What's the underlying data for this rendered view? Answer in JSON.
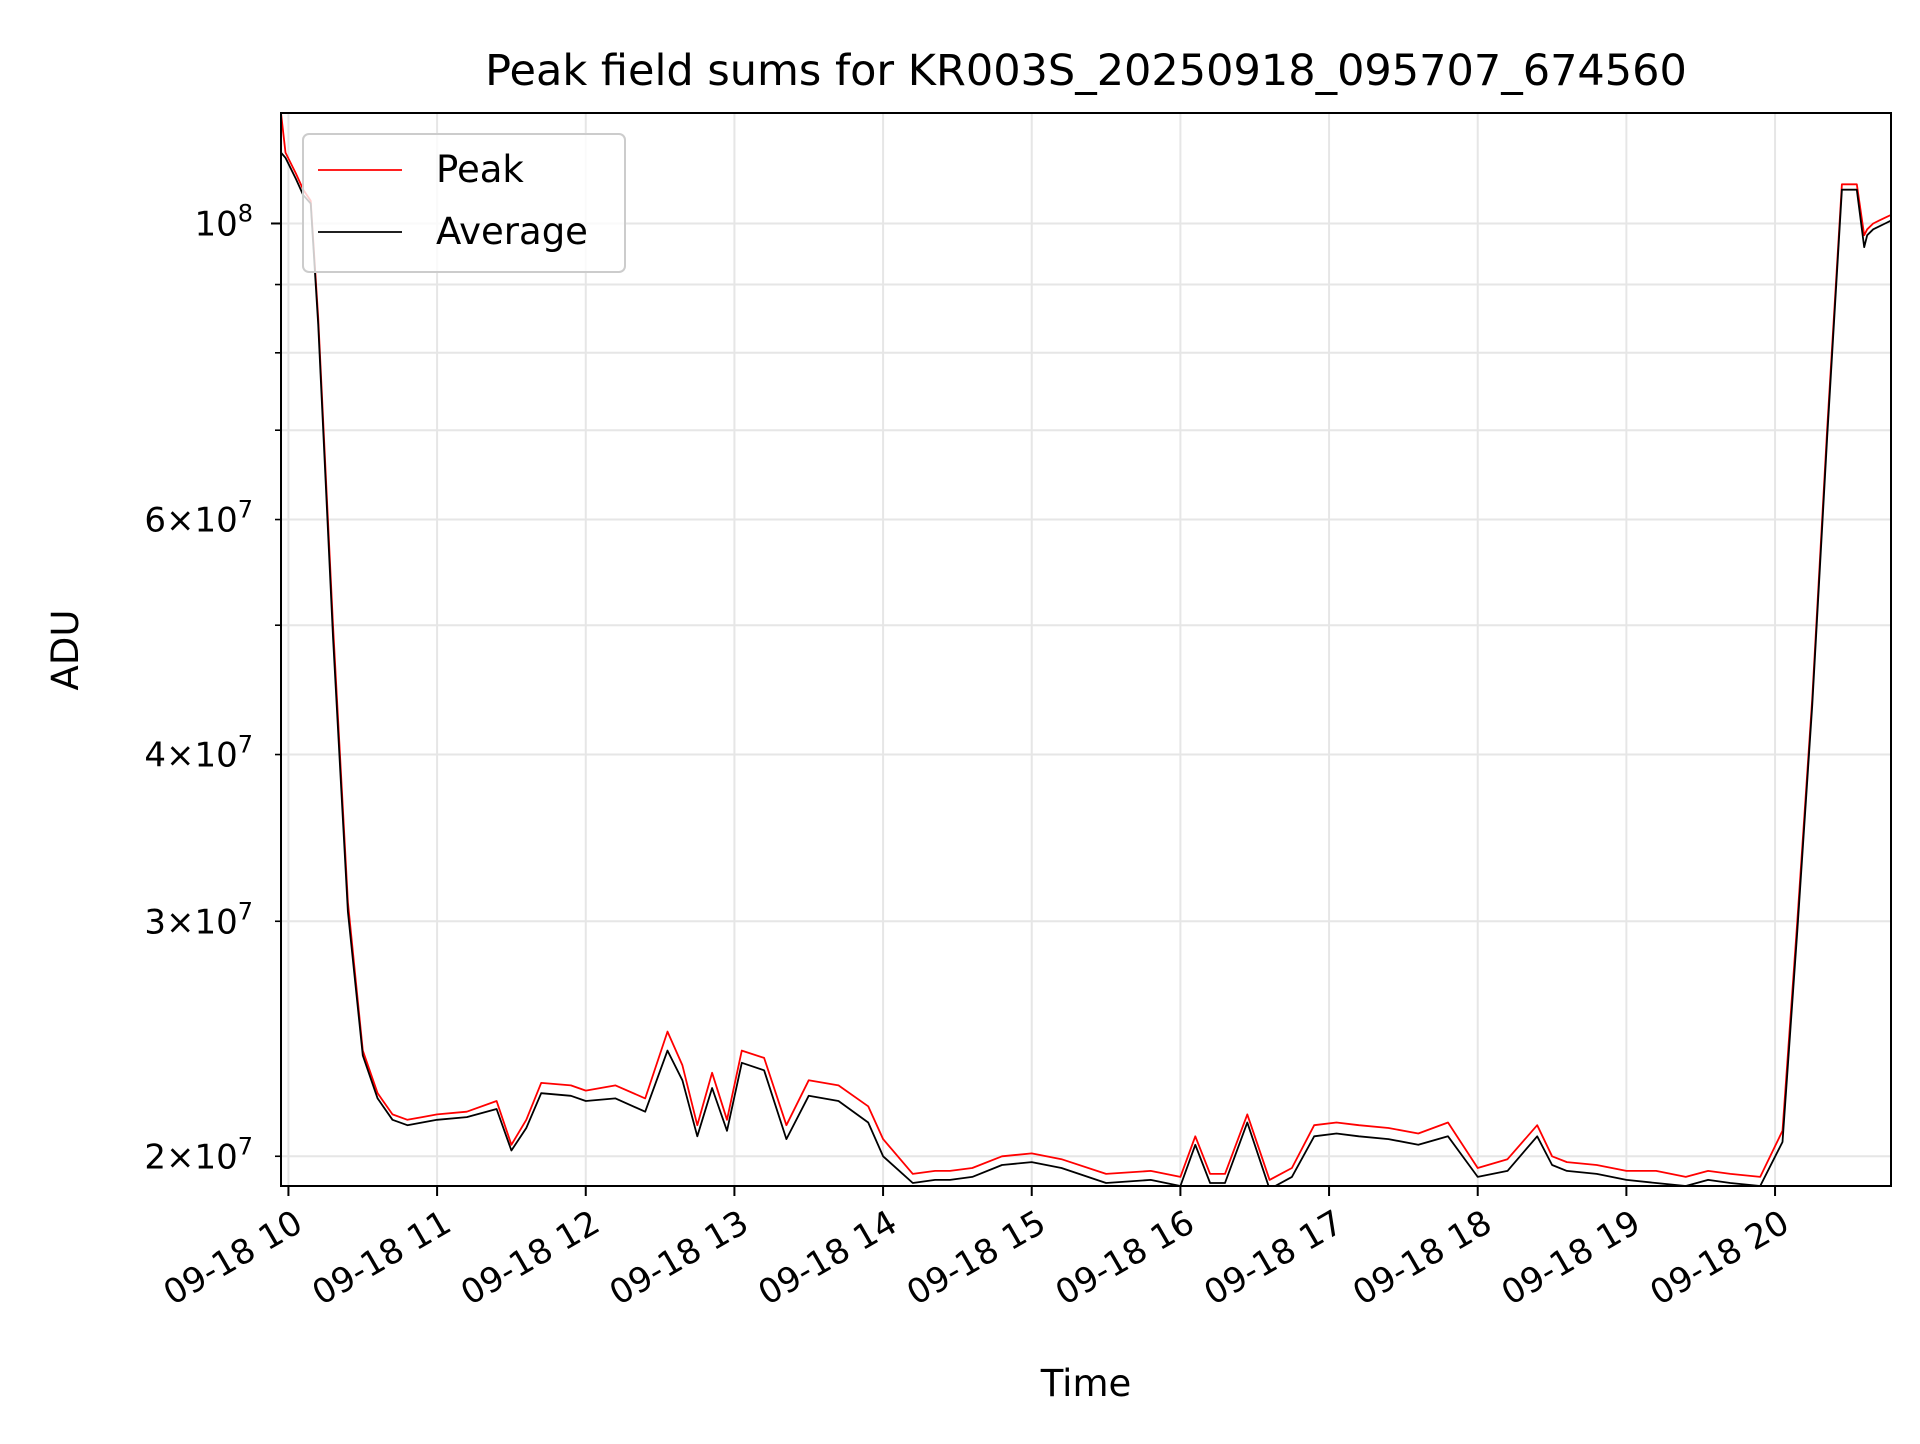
{
  "chart_data": {
    "type": "line",
    "title": "Peak field sums for KR003S_20250918_095707_674560",
    "xlabel": "Time",
    "ylabel": "ADU",
    "x_unit": "hours (2025-09-18)",
    "xlim": [
      9.95,
      20.78
    ],
    "ylim": [
      19000000,
      121000000
    ],
    "yscale": "log",
    "grid": true,
    "legend_position": "upper left",
    "x_ticks": [
      {
        "value": 10,
        "label": "09-18 10"
      },
      {
        "value": 11,
        "label": "09-18 11"
      },
      {
        "value": 12,
        "label": "09-18 12"
      },
      {
        "value": 13,
        "label": "09-18 13"
      },
      {
        "value": 14,
        "label": "09-18 14"
      },
      {
        "value": 15,
        "label": "09-18 15"
      },
      {
        "value": 16,
        "label": "09-18 16"
      },
      {
        "value": 17,
        "label": "09-18 17"
      },
      {
        "value": 18,
        "label": "09-18 18"
      },
      {
        "value": 19,
        "label": "09-18 19"
      },
      {
        "value": 20,
        "label": "09-18 20"
      }
    ],
    "y_ticks_major": [
      {
        "value": 100000000,
        "base": "10",
        "exp": "8",
        "mantissa": ""
      }
    ],
    "y_ticks_minor": [
      {
        "value": 20000000,
        "mantissa": "2",
        "base": "10",
        "exp": "7",
        "labeled": true
      },
      {
        "value": 30000000,
        "mantissa": "3",
        "base": "10",
        "exp": "7",
        "labeled": true
      },
      {
        "value": 40000000,
        "mantissa": "4",
        "base": "10",
        "exp": "7",
        "labeled": true
      },
      {
        "value": 50000000,
        "labeled": false
      },
      {
        "value": 60000000,
        "mantissa": "6",
        "base": "10",
        "exp": "7",
        "labeled": true
      },
      {
        "value": 70000000,
        "labeled": false
      },
      {
        "value": 80000000,
        "labeled": false
      },
      {
        "value": 90000000,
        "labeled": false
      }
    ],
    "series": [
      {
        "name": "Peak",
        "color": "#ff0000",
        "x": [
          9.95,
          9.98,
          10.05,
          10.1,
          10.15,
          10.2,
          10.3,
          10.4,
          10.5,
          10.6,
          10.7,
          10.8,
          10.9,
          11.0,
          11.2,
          11.4,
          11.5,
          11.6,
          11.7,
          11.9,
          12.0,
          12.2,
          12.4,
          12.55,
          12.65,
          12.75,
          12.85,
          12.95,
          13.05,
          13.2,
          13.35,
          13.5,
          13.7,
          13.9,
          14.0,
          14.2,
          14.35,
          14.45,
          14.6,
          14.8,
          15.0,
          15.2,
          15.5,
          15.8,
          16.0,
          16.1,
          16.2,
          16.3,
          16.45,
          16.6,
          16.75,
          16.9,
          17.05,
          17.2,
          17.4,
          17.6,
          17.8,
          18.0,
          18.2,
          18.4,
          18.5,
          18.6,
          18.8,
          19.0,
          19.2,
          19.4,
          19.55,
          19.7,
          19.9,
          20.05,
          20.15,
          20.25,
          20.35,
          20.45,
          20.55,
          20.6,
          20.62,
          20.66,
          20.7,
          20.74,
          20.78
        ],
        "y": [
          121000000,
          113000000,
          109000000,
          106000000,
          104000000,
          85000000,
          50000000,
          31000000,
          24000000,
          22300000,
          21500000,
          21300000,
          21400000,
          21500000,
          21600000,
          22000000,
          20400000,
          21300000,
          22700000,
          22600000,
          22400000,
          22600000,
          22100000,
          24800000,
          23400000,
          21100000,
          23100000,
          21300000,
          24000000,
          23700000,
          21100000,
          22800000,
          22600000,
          21800000,
          20600000,
          19400000,
          19500000,
          19500000,
          19600000,
          20000000,
          20100000,
          19900000,
          19400000,
          19500000,
          19300000,
          20700000,
          19400000,
          19400000,
          21500000,
          19200000,
          19600000,
          21100000,
          21200000,
          21100000,
          21000000,
          20800000,
          21200000,
          19600000,
          19900000,
          21100000,
          20000000,
          19800000,
          19700000,
          19500000,
          19500000,
          19300000,
          19500000,
          19400000,
          19300000,
          20900000,
          30000000,
          44000000,
          70000000,
          107000000,
          107000000,
          98000000,
          99000000,
          100000000,
          100500000,
          101000000,
          101500000
        ]
      },
      {
        "name": "Average",
        "color": "#000000",
        "x": [
          9.95,
          9.98,
          10.05,
          10.1,
          10.15,
          10.2,
          10.3,
          10.4,
          10.5,
          10.6,
          10.7,
          10.8,
          10.9,
          11.0,
          11.2,
          11.4,
          11.5,
          11.6,
          11.7,
          11.9,
          12.0,
          12.2,
          12.4,
          12.55,
          12.65,
          12.75,
          12.85,
          12.95,
          13.05,
          13.2,
          13.35,
          13.5,
          13.7,
          13.9,
          14.0,
          14.2,
          14.35,
          14.45,
          14.6,
          14.8,
          15.0,
          15.2,
          15.5,
          15.8,
          16.0,
          16.1,
          16.2,
          16.3,
          16.45,
          16.6,
          16.75,
          16.9,
          17.05,
          17.2,
          17.4,
          17.6,
          17.8,
          18.0,
          18.2,
          18.4,
          18.5,
          18.6,
          18.8,
          19.0,
          19.2,
          19.4,
          19.55,
          19.7,
          19.9,
          20.05,
          20.15,
          20.25,
          20.35,
          20.45,
          20.55,
          20.6,
          20.62,
          20.66,
          20.7,
          20.74,
          20.78
        ],
        "y": [
          113000000,
          112000000,
          108000000,
          105000000,
          103500000,
          84000000,
          49000000,
          30500000,
          23800000,
          22100000,
          21300000,
          21100000,
          21200000,
          21300000,
          21400000,
          21700000,
          20200000,
          21000000,
          22300000,
          22200000,
          22000000,
          22100000,
          21600000,
          24000000,
          22800000,
          20700000,
          22500000,
          20900000,
          23500000,
          23200000,
          20600000,
          22200000,
          22000000,
          21200000,
          20000000,
          19100000,
          19200000,
          19200000,
          19300000,
          19700000,
          19800000,
          19600000,
          19100000,
          19200000,
          19000000,
          20400000,
          19100000,
          19100000,
          21200000,
          18900000,
          19300000,
          20700000,
          20800000,
          20700000,
          20600000,
          20400000,
          20700000,
          19300000,
          19500000,
          20700000,
          19700000,
          19500000,
          19400000,
          19200000,
          19100000,
          19000000,
          19200000,
          19100000,
          19000000,
          20500000,
          29500000,
          43500000,
          69000000,
          106000000,
          106000000,
          96000000,
          98000000,
          99000000,
          99500000,
          100000000,
          100500000
        ]
      }
    ]
  }
}
